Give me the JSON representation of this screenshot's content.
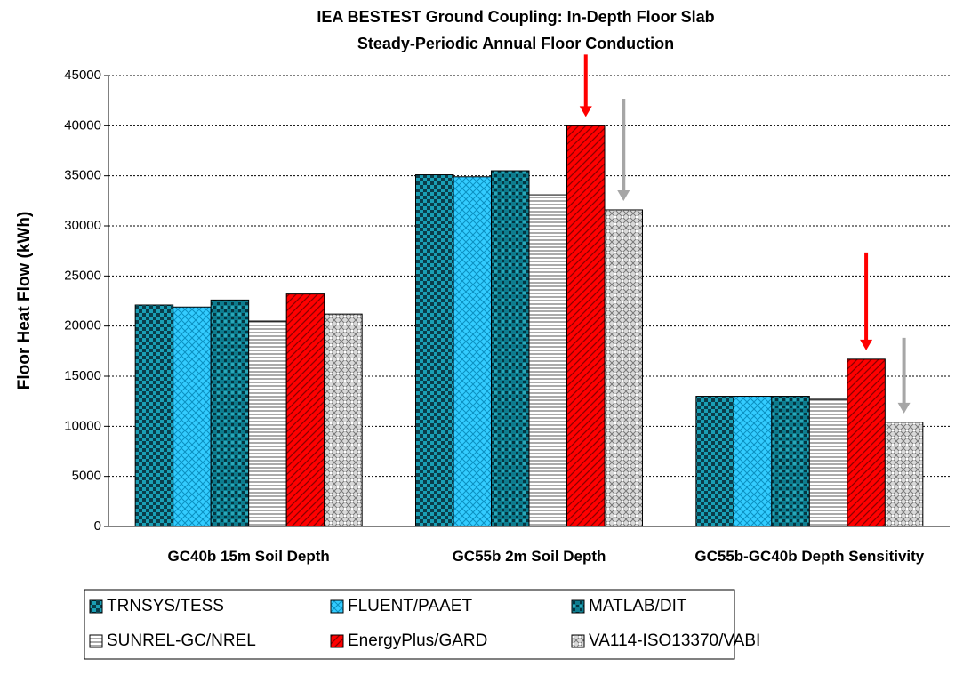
{
  "chart_data": {
    "type": "bar",
    "title": "IEA BESTEST Ground Coupling: In-Depth Floor Slab",
    "subtitle": "Steady-Periodic Annual Floor Conduction",
    "y_label": "Floor Heat Flow (kWh)",
    "categories": [
      "GC40b  15m Soil Depth",
      "GC55b  2m Soil Depth",
      "GC55b-GC40b  Depth Sensitivity"
    ],
    "series": [
      {
        "name": "TRNSYS/TESS",
        "color": "#1a9fb5",
        "values": [
          22100,
          35100,
          13000
        ]
      },
      {
        "name": "FLUENT/PAAET",
        "color": "#33ccff",
        "values": [
          21900,
          34900,
          13000
        ]
      },
      {
        "name": "MATLAB/DIT",
        "color": "#0e7d8f",
        "values": [
          22600,
          35500,
          13000
        ]
      },
      {
        "name": "SUNREL-GC/NREL",
        "color": "#ffffff",
        "values": [
          20500,
          33100,
          12700
        ]
      },
      {
        "name": "EnergyPlus/GARD",
        "color": "#ff0000",
        "values": [
          23200,
          40000,
          16700
        ]
      },
      {
        "name": "VA114-ISO13370/VABI",
        "color": "#d9d9d9",
        "values": [
          21200,
          31600,
          10400
        ]
      }
    ],
    "ylim": [
      0,
      45000
    ],
    "yticks": [
      0,
      5000,
      10000,
      15000,
      20000,
      25000,
      30000,
      35000,
      40000,
      45000
    ],
    "grid": true,
    "legend": "bottom"
  }
}
